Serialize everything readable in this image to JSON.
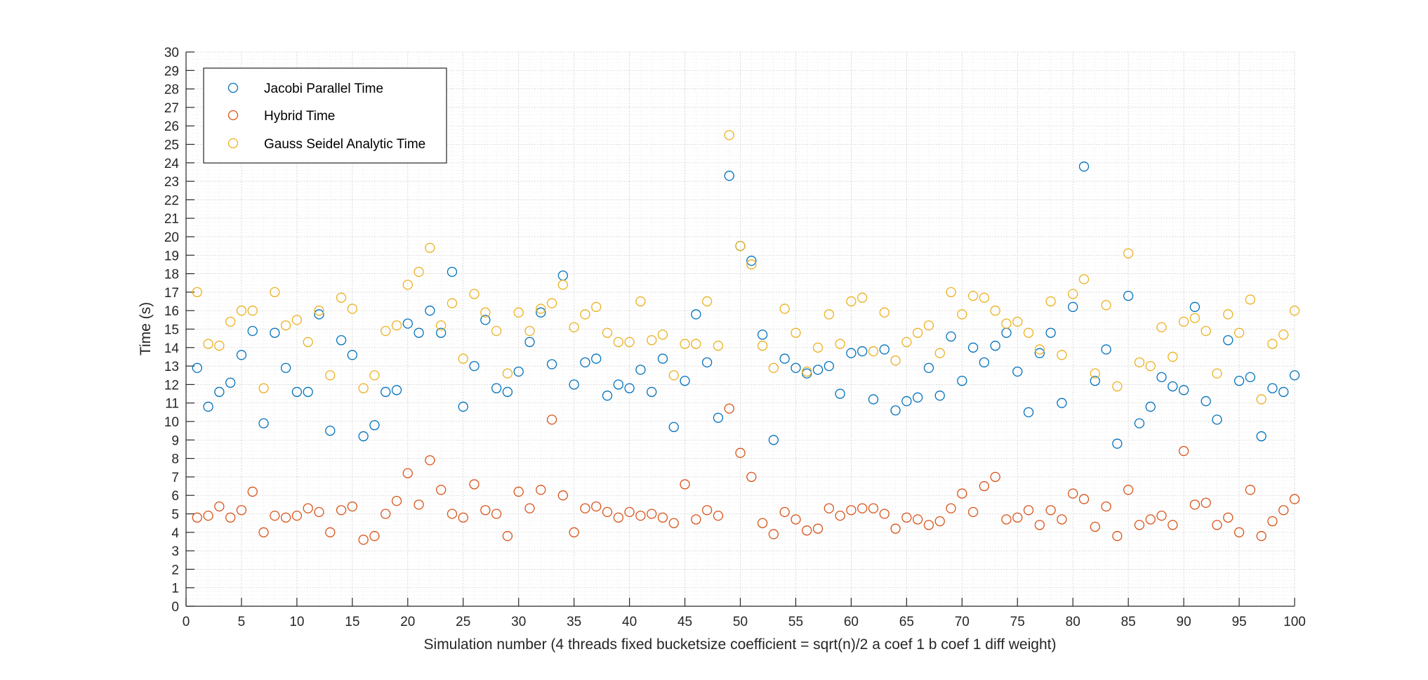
{
  "chart_data": {
    "type": "scatter",
    "title": "",
    "xlabel": "Simulation number (4 threads fixed bucketsize coefficient = sqrt(n)/2 a coef 1 b coef 1 diff weight)",
    "ylabel": "Time (s)",
    "xlim": [
      0,
      100
    ],
    "ylim": [
      0,
      30
    ],
    "xticks": [
      0,
      5,
      10,
      15,
      20,
      25,
      30,
      35,
      40,
      45,
      50,
      55,
      60,
      65,
      70,
      75,
      80,
      85,
      90,
      95,
      100
    ],
    "yticks": [
      0,
      1,
      2,
      3,
      4,
      5,
      6,
      7,
      8,
      9,
      10,
      11,
      12,
      13,
      14,
      15,
      16,
      17,
      18,
      19,
      20,
      21,
      22,
      23,
      24,
      25,
      26,
      27,
      28,
      29,
      30
    ],
    "grid": "major and minor",
    "legend_position": "top-left",
    "x": [
      1,
      2,
      3,
      4,
      5,
      6,
      7,
      8,
      9,
      10,
      11,
      12,
      13,
      14,
      15,
      16,
      17,
      18,
      19,
      20,
      21,
      22,
      23,
      24,
      25,
      26,
      27,
      28,
      29,
      30,
      31,
      32,
      33,
      34,
      35,
      36,
      37,
      38,
      39,
      40,
      41,
      42,
      43,
      44,
      45,
      46,
      47,
      48,
      49,
      50,
      51,
      52,
      53,
      54,
      55,
      56,
      57,
      58,
      59,
      60,
      61,
      62,
      63,
      64,
      65,
      66,
      67,
      68,
      69,
      70,
      71,
      72,
      73,
      74,
      75,
      76,
      77,
      78,
      79,
      80,
      81,
      82,
      83,
      84,
      85,
      86,
      87,
      88,
      89,
      90,
      91,
      92,
      93,
      94,
      95,
      96,
      97,
      98,
      99,
      100
    ],
    "series": [
      {
        "name": "Jacobi Parallel Time",
        "color": "#0072BD",
        "values": [
          12.9,
          10.8,
          11.6,
          12.1,
          13.6,
          14.9,
          9.9,
          14.8,
          12.9,
          11.6,
          11.6,
          15.8,
          9.5,
          14.4,
          13.6,
          9.2,
          9.8,
          11.6,
          11.7,
          15.3,
          14.8,
          16.0,
          14.8,
          18.1,
          10.8,
          13.0,
          15.5,
          11.8,
          11.6,
          12.7,
          14.3,
          15.9,
          13.1,
          17.9,
          12.0,
          13.2,
          13.4,
          11.4,
          12.0,
          11.8,
          12.8,
          11.6,
          13.4,
          9.7,
          12.2,
          15.8,
          13.2,
          10.2,
          23.3,
          19.5,
          18.7,
          14.7,
          9.0,
          13.4,
          12.9,
          12.6,
          12.8,
          13.0,
          11.5,
          13.7,
          13.8,
          11.2,
          13.9,
          10.6,
          11.1,
          11.3,
          12.9,
          11.4,
          14.6,
          12.2,
          14.0,
          13.2,
          14.1,
          14.8,
          12.7,
          10.5,
          13.7,
          14.8,
          11.0,
          16.2,
          23.8,
          12.2,
          13.9,
          8.8,
          16.8,
          9.9,
          10.8,
          12.4,
          11.9,
          11.7,
          16.2,
          11.1,
          10.1,
          14.4,
          12.2,
          12.4,
          9.2,
          11.8,
          11.6,
          12.5
        ]
      },
      {
        "name": "Hybrid Time",
        "color": "#D95319",
        "values": [
          4.8,
          4.9,
          5.4,
          4.8,
          5.2,
          6.2,
          4.0,
          4.9,
          4.8,
          4.9,
          5.3,
          5.1,
          4.0,
          5.2,
          5.4,
          3.6,
          3.8,
          5.0,
          5.7,
          7.2,
          5.5,
          7.9,
          6.3,
          5.0,
          4.8,
          6.6,
          5.2,
          5.0,
          3.8,
          6.2,
          5.3,
          6.3,
          10.1,
          6.0,
          4.0,
          5.3,
          5.4,
          5.1,
          4.8,
          5.1,
          4.9,
          5.0,
          4.8,
          4.5,
          6.6,
          4.7,
          5.2,
          4.9,
          10.7,
          8.3,
          7.0,
          4.5,
          3.9,
          5.1,
          4.7,
          4.1,
          4.2,
          5.3,
          4.9,
          5.2,
          5.3,
          5.3,
          5.0,
          4.2,
          4.8,
          4.7,
          4.4,
          4.6,
          5.3,
          6.1,
          5.1,
          6.5,
          7.0,
          4.7,
          4.8,
          5.2,
          4.4,
          5.2,
          4.7,
          6.1,
          5.8,
          4.3,
          5.4,
          3.8,
          6.3,
          4.4,
          4.7,
          4.9,
          4.4,
          8.4,
          5.5,
          5.6,
          4.4,
          4.8,
          4.0,
          6.3,
          3.8,
          4.6,
          5.2,
          5.8
        ]
      },
      {
        "name": "Gauss Seidel Analytic Time",
        "color": "#EDB120",
        "values": [
          17.0,
          14.2,
          14.1,
          15.4,
          16.0,
          16.0,
          11.8,
          17.0,
          15.2,
          15.5,
          14.3,
          16.0,
          12.5,
          16.7,
          16.1,
          11.8,
          12.5,
          14.9,
          15.2,
          17.4,
          18.1,
          19.4,
          15.2,
          16.4,
          13.4,
          16.9,
          15.9,
          14.9,
          12.6,
          15.9,
          14.9,
          16.1,
          16.4,
          17.4,
          15.1,
          15.8,
          16.2,
          14.8,
          14.3,
          14.3,
          16.5,
          14.4,
          14.7,
          12.5,
          14.2,
          14.2,
          16.5,
          14.1,
          25.5,
          19.5,
          18.5,
          14.1,
          12.9,
          16.1,
          14.8,
          12.7,
          14.0,
          15.8,
          14.2,
          16.5,
          16.7,
          13.8,
          15.9,
          13.3,
          14.3,
          14.8,
          15.2,
          13.7,
          17.0,
          15.8,
          16.8,
          16.7,
          16.0,
          15.3,
          15.4,
          14.8,
          13.9,
          16.5,
          13.6,
          16.9,
          17.7,
          12.6,
          16.3,
          11.9,
          19.1,
          13.2,
          13.0,
          15.1,
          13.5,
          15.4,
          15.6,
          14.9,
          12.6,
          15.8,
          14.8,
          16.6,
          11.2,
          14.2,
          14.7,
          16.0
        ]
      }
    ]
  }
}
